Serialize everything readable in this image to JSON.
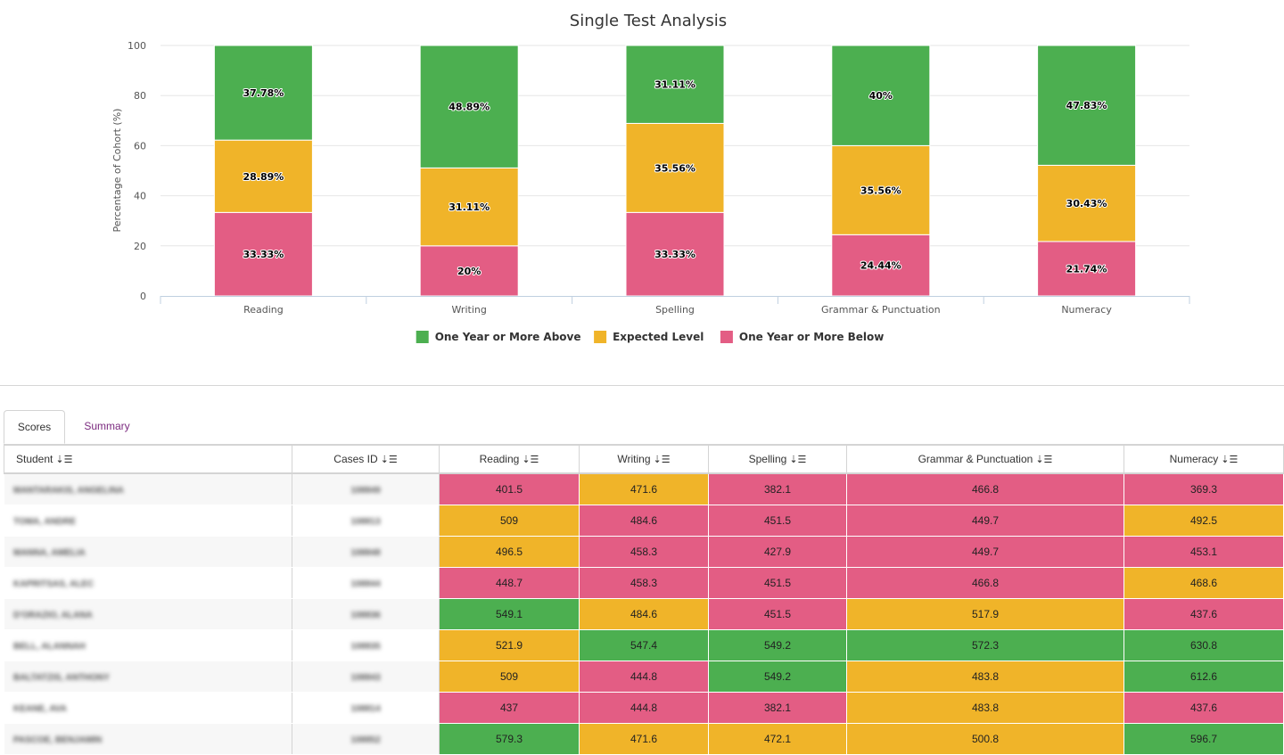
{
  "chart_data": {
    "type": "bar",
    "stacked": true,
    "title": "Single Test Analysis",
    "ylabel": "Percentage of Cohort (%)",
    "xlabel": "",
    "ylim": [
      0,
      100
    ],
    "yticks": [
      0,
      20,
      40,
      60,
      80,
      100
    ],
    "categories": [
      "Reading",
      "Writing",
      "Spelling",
      "Grammar & Punctuation",
      "Numeracy"
    ],
    "series": [
      {
        "name": "One Year or More Below",
        "color": "#e35d84",
        "values": [
          33.33,
          20,
          33.33,
          24.44,
          21.74
        ],
        "labels": [
          "33.33%",
          "20%",
          "33.33%",
          "24.44%",
          "21.74%"
        ]
      },
      {
        "name": "Expected Level",
        "color": "#f0b429",
        "values": [
          28.89,
          31.11,
          35.56,
          35.56,
          30.43
        ],
        "labels": [
          "28.89%",
          "31.11%",
          "35.56%",
          "35.56%",
          "30.43%"
        ]
      },
      {
        "name": "One Year or More Above",
        "color": "#4caf50",
        "values": [
          37.78,
          48.89,
          31.11,
          40,
          47.83
        ],
        "labels": [
          "37.78%",
          "48.89%",
          "31.11%",
          "40%",
          "47.83%"
        ]
      }
    ],
    "legend_order": [
      "One Year or More Above",
      "Expected Level",
      "One Year or More Below"
    ],
    "legend_position": "bottom-center",
    "grid": true
  },
  "tabs": {
    "scores": "Scores",
    "summary": "Summary"
  },
  "table": {
    "headers": {
      "student": "Student",
      "case_id": "Cases ID",
      "reading": "Reading",
      "writing": "Writing",
      "spelling": "Spelling",
      "grammar": "Grammar & Punctuation",
      "numeracy": "Numeracy"
    },
    "sort_icon": "sort-amount-icon",
    "colors": {
      "green": "#4caf50",
      "amber": "#f0b429",
      "red": "#e35d84"
    },
    "rows": [
      {
        "name": "MANTARAKIS, ANGELINA",
        "case_id": "108849",
        "scores": [
          {
            "v": "401.5",
            "c": "red"
          },
          {
            "v": "471.6",
            "c": "amber"
          },
          {
            "v": "382.1",
            "c": "red"
          },
          {
            "v": "466.8",
            "c": "red"
          },
          {
            "v": "369.3",
            "c": "red"
          }
        ]
      },
      {
        "name": "TOMA, ANDRE",
        "case_id": "108813",
        "scores": [
          {
            "v": "509",
            "c": "amber"
          },
          {
            "v": "484.6",
            "c": "red"
          },
          {
            "v": "451.5",
            "c": "red"
          },
          {
            "v": "449.7",
            "c": "red"
          },
          {
            "v": "492.5",
            "c": "amber"
          }
        ]
      },
      {
        "name": "MANNA, AMELIA",
        "case_id": "108848",
        "scores": [
          {
            "v": "496.5",
            "c": "amber"
          },
          {
            "v": "458.3",
            "c": "red"
          },
          {
            "v": "427.9",
            "c": "red"
          },
          {
            "v": "449.7",
            "c": "red"
          },
          {
            "v": "453.1",
            "c": "red"
          }
        ]
      },
      {
        "name": "KAPRITSAS, ALEC",
        "case_id": "108844",
        "scores": [
          {
            "v": "448.7",
            "c": "red"
          },
          {
            "v": "458.3",
            "c": "red"
          },
          {
            "v": "451.5",
            "c": "red"
          },
          {
            "v": "466.8",
            "c": "red"
          },
          {
            "v": "468.6",
            "c": "amber"
          }
        ]
      },
      {
        "name": "D'ORAZIO, ALANA",
        "case_id": "108836",
        "scores": [
          {
            "v": "549.1",
            "c": "green"
          },
          {
            "v": "484.6",
            "c": "amber"
          },
          {
            "v": "451.5",
            "c": "red"
          },
          {
            "v": "517.9",
            "c": "amber"
          },
          {
            "v": "437.6",
            "c": "red"
          }
        ]
      },
      {
        "name": "BELL, ALANNAH",
        "case_id": "108835",
        "scores": [
          {
            "v": "521.9",
            "c": "amber"
          },
          {
            "v": "547.4",
            "c": "green"
          },
          {
            "v": "549.2",
            "c": "green"
          },
          {
            "v": "572.3",
            "c": "green"
          },
          {
            "v": "630.8",
            "c": "green"
          }
        ]
      },
      {
        "name": "BALTATZIS, ANTHONY",
        "case_id": "108843",
        "scores": [
          {
            "v": "509",
            "c": "amber"
          },
          {
            "v": "444.8",
            "c": "red"
          },
          {
            "v": "549.2",
            "c": "green"
          },
          {
            "v": "483.8",
            "c": "amber"
          },
          {
            "v": "612.6",
            "c": "green"
          }
        ]
      },
      {
        "name": "KEANE, AVA",
        "case_id": "108814",
        "scores": [
          {
            "v": "437",
            "c": "red"
          },
          {
            "v": "444.8",
            "c": "red"
          },
          {
            "v": "382.1",
            "c": "red"
          },
          {
            "v": "483.8",
            "c": "amber"
          },
          {
            "v": "437.6",
            "c": "red"
          }
        ]
      },
      {
        "name": "PASCOE, BENJAMIN",
        "case_id": "108852",
        "scores": [
          {
            "v": "579.3",
            "c": "green"
          },
          {
            "v": "471.6",
            "c": "amber"
          },
          {
            "v": "472.1",
            "c": "amber"
          },
          {
            "v": "500.8",
            "c": "amber"
          },
          {
            "v": "596.7",
            "c": "green"
          }
        ]
      }
    ]
  }
}
